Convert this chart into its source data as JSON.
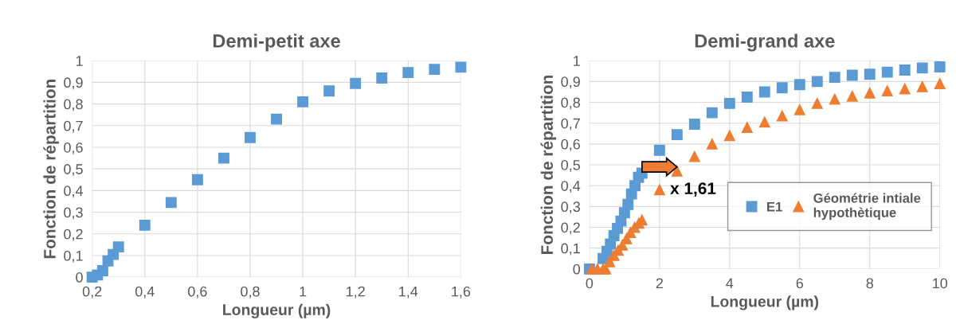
{
  "chart_data": [
    {
      "type": "scatter",
      "title": "Demi-petit axe",
      "xlabel": "Longueur (µm)",
      "ylabel": "Fonction de répartition",
      "marker": "square",
      "grid": true,
      "legend": false,
      "xlim": [
        0.2,
        1.6
      ],
      "xticks": [
        {
          "value": 0.2,
          "label": "0,2"
        },
        {
          "value": 0.4,
          "label": "0,4"
        },
        {
          "value": 0.6,
          "label": "0,6"
        },
        {
          "value": 0.8,
          "label": "0,8"
        },
        {
          "value": 1,
          "label": "1"
        },
        {
          "value": 1.2,
          "label": "1,2"
        },
        {
          "value": 1.4,
          "label": "1,4"
        },
        {
          "value": 1.6,
          "label": "1,6"
        }
      ],
      "ylim": [
        0,
        1
      ],
      "yticks": [
        0,
        {
          "value": 0.1,
          "label": "0,1"
        },
        {
          "value": 0.2,
          "label": "0,2"
        },
        {
          "value": 0.3,
          "label": "0,3"
        },
        {
          "value": 0.4,
          "label": "0,4"
        },
        {
          "value": 0.5,
          "label": "0,5"
        },
        {
          "value": 0.6,
          "label": "0,6"
        },
        {
          "value": 0.7,
          "label": "0,7"
        },
        {
          "value": 0.8,
          "label": "0,8"
        },
        {
          "value": 0.9,
          "label": "0,9"
        },
        1
      ],
      "series": [
        {
          "color": "#5b9bd5",
          "x": [
            0.2,
            0.22,
            0.24,
            0.26,
            0.28,
            0.3,
            0.4,
            0.5,
            0.6,
            0.7,
            0.8,
            0.9,
            1.0,
            1.1,
            1.2,
            1.3,
            1.4,
            1.5,
            1.6
          ],
          "values": [
            0,
            0.01,
            0.03,
            0.075,
            0.105,
            0.14,
            0.24,
            0.345,
            0.45,
            0.55,
            0.645,
            0.73,
            0.81,
            0.86,
            0.895,
            0.92,
            0.945,
            0.96,
            0.97
          ]
        }
      ]
    },
    {
      "type": "scatter",
      "title": "Demi-grand axe",
      "xlabel": "Longueur (µm)",
      "ylabel": "Fonction de répartition",
      "grid": true,
      "legend": "right",
      "xlim": [
        0,
        10
      ],
      "xticks": [
        0,
        2,
        4,
        6,
        8,
        10
      ],
      "ylim": [
        0,
        1
      ],
      "yticks": [
        0,
        {
          "value": 0.1,
          "label": "0,1"
        },
        {
          "value": 0.2,
          "label": "0,2"
        },
        {
          "value": 0.3,
          "label": "0,3"
        },
        {
          "value": 0.4,
          "label": "0,4"
        },
        {
          "value": 0.5,
          "label": "0,5"
        },
        {
          "value": 0.6,
          "label": "0,6"
        },
        {
          "value": 0.7,
          "label": "0,7"
        },
        {
          "value": 0.8,
          "label": "0,8"
        },
        {
          "value": 0.9,
          "label": "0,9"
        },
        1
      ],
      "annotations": [
        "x 1,61"
      ],
      "series": [
        {
          "name": "E1",
          "color": "#5b9bd5",
          "marker": "square",
          "x": [
            0,
            0.23,
            0.39,
            0.5,
            0.6,
            0.7,
            0.8,
            0.9,
            1.0,
            1.1,
            1.2,
            1.3,
            1.4,
            1.5,
            2,
            2.5,
            3,
            3.5,
            4,
            4.5,
            5,
            5.5,
            6,
            6.5,
            7,
            7.5,
            8,
            8.5,
            9,
            9.5,
            10
          ],
          "values": [
            0,
            null,
            0.05,
            0.085,
            0.12,
            0.16,
            0.195,
            0.23,
            0.27,
            0.31,
            0.36,
            0.4,
            0.44,
            0.46,
            0.57,
            0.645,
            0.695,
            0.75,
            0.795,
            0.825,
            0.85,
            0.87,
            0.885,
            0.9,
            0.92,
            0.93,
            0.935,
            0.945,
            0.955,
            0.965,
            0.97
          ]
        },
        {
          "name": "Géométrie intiale\nhypothètique",
          "color": "#ed7d31",
          "marker": "triangle",
          "x": [
            0.07,
            0.23,
            0.39,
            0.46,
            0.58,
            0.7,
            0.82,
            0.94,
            1.06,
            1.17,
            1.29,
            1.41,
            1.5,
            2,
            2.5,
            3,
            3.5,
            4,
            4.5,
            5,
            5.5,
            6,
            6.5,
            7,
            7.5,
            8,
            8.5,
            9,
            9.5,
            10
          ],
          "values": [
            0,
            0,
            0,
            0,
            0.035,
            0.065,
            0.09,
            0.115,
            0.145,
            0.175,
            0.2,
            0.22,
            0.235,
            0.38,
            0.47,
            0.54,
            0.6,
            0.64,
            0.68,
            0.705,
            0.735,
            0.765,
            0.795,
            0.815,
            0.83,
            0.845,
            0.855,
            0.865,
            0.875,
            0.89
          ]
        }
      ]
    }
  ]
}
